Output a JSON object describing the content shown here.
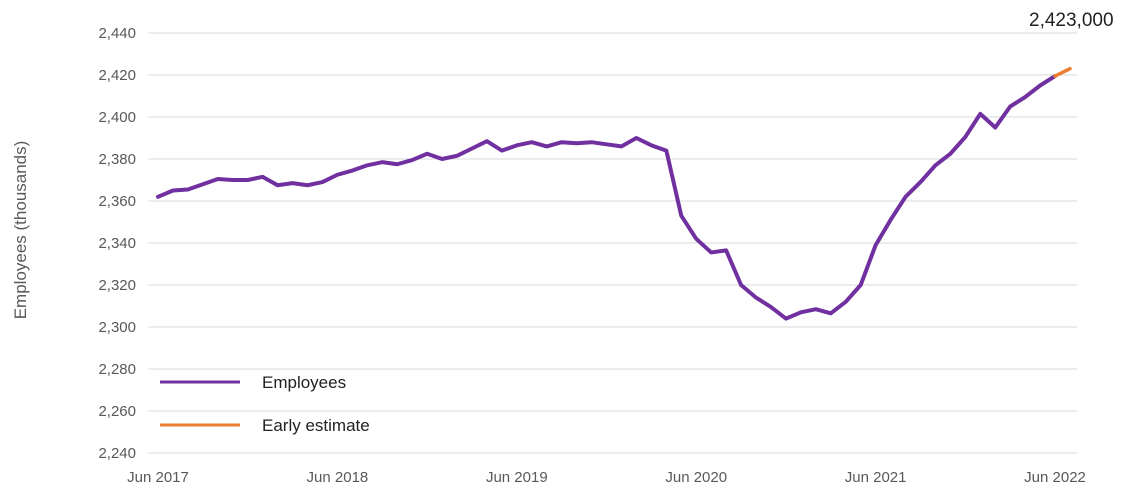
{
  "chart_data": {
    "type": "line",
    "title": "",
    "xlabel": "",
    "ylabel": "Employees (thousands)",
    "ylim": [
      2240,
      2440
    ],
    "yticks": [
      2240,
      2260,
      2280,
      2300,
      2320,
      2340,
      2360,
      2380,
      2400,
      2420,
      2440
    ],
    "ytick_labels": [
      "2,240",
      "2,260",
      "2,280",
      "2,300",
      "2,320",
      "2,340",
      "2,360",
      "2,380",
      "2,400",
      "2,420",
      "2,440"
    ],
    "xtick_labels": [
      "Jun 2017",
      "Jun 2018",
      "Jun 2019",
      "Jun 2020",
      "Jun 2021",
      "Jun 2022"
    ],
    "x_start": "Jun 2017",
    "x_end": "Jun 2022",
    "grid": true,
    "legend_position": "bottom-left",
    "annotation": "2,423,000",
    "series": [
      {
        "name": "Employees",
        "color": "#7030a0",
        "values": [
          2362,
          2365,
          2365.5,
          2368,
          2370.5,
          2370,
          2370,
          2371.5,
          2367.5,
          2368.5,
          2367.5,
          2369,
          2372.5,
          2374.5,
          2377,
          2378.5,
          2377.5,
          2379.5,
          2382.5,
          2380,
          2381.5,
          2385,
          2388.5,
          2384,
          2386.5,
          2388,
          2386,
          2388,
          2387.5,
          2388,
          2387,
          2386,
          2390,
          2386.5,
          2384,
          2353,
          2342,
          2335.5,
          2336.5,
          2320,
          2314,
          2309.5,
          2304,
          2307,
          2308.5,
          2306.5,
          2312,
          2320,
          2339,
          2351,
          2362,
          2369,
          2377,
          2382.5,
          2390.5,
          2401.5,
          2395,
          2405,
          2409.5,
          2415,
          2419.5
        ]
      },
      {
        "name": "Early estimate",
        "color": "#ed7d31",
        "start_index": 60,
        "values": [
          2419.5,
          2423
        ]
      }
    ]
  }
}
